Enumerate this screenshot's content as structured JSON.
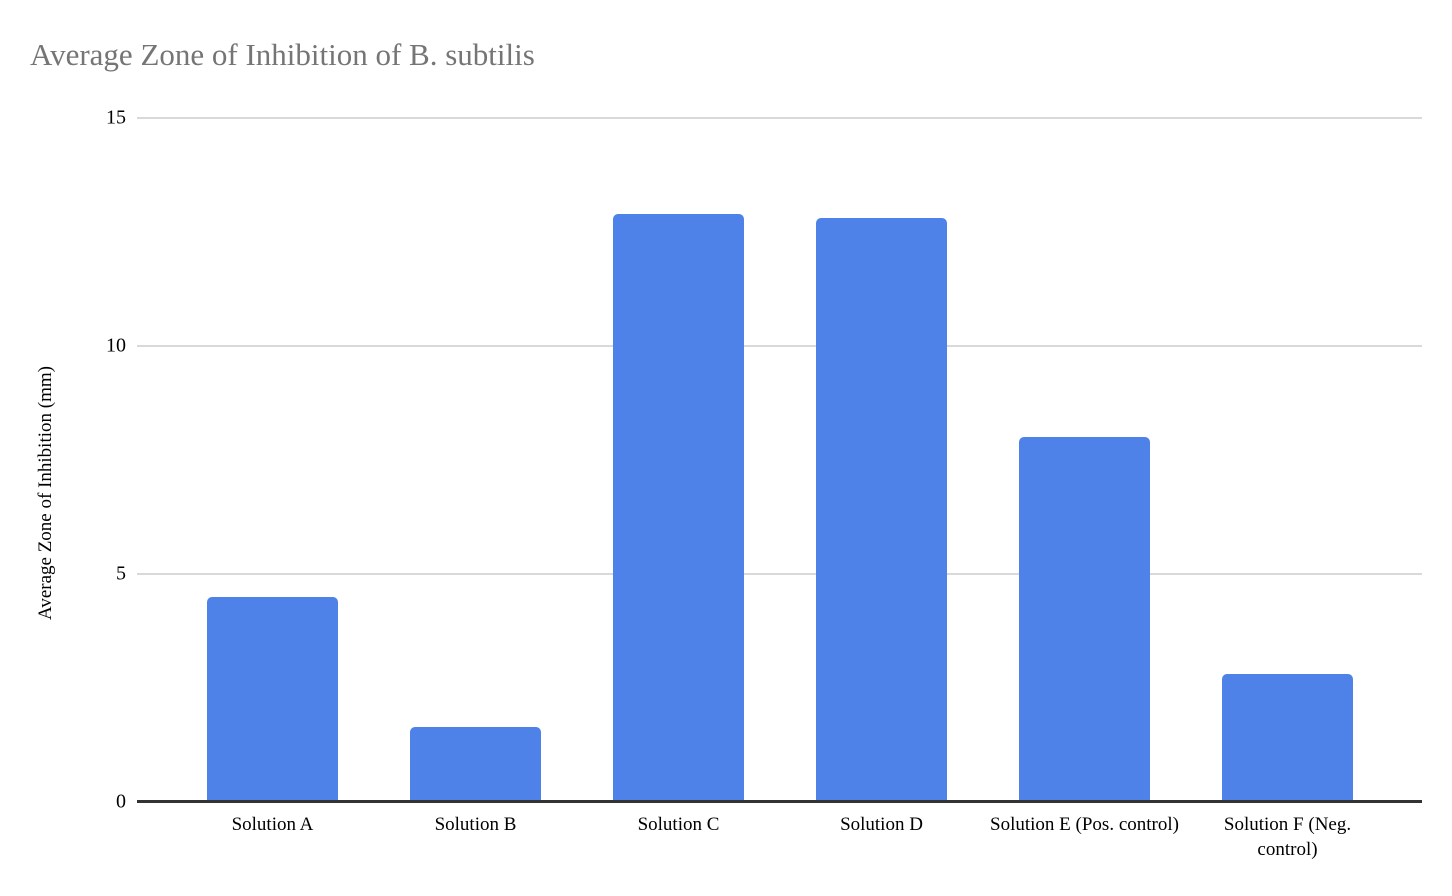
{
  "chart_data": {
    "type": "bar",
    "title": "Average Zone of Inhibition of B. subtilis",
    "xlabel": "",
    "ylabel": "Average Zone of Inhibition (mm)",
    "categories": [
      "Solution A",
      "Solution B",
      "Solution C",
      "Solution D",
      "Solution E (Pos. control)",
      "Solution F (Neg. control)"
    ],
    "values": [
      4.5,
      1.65,
      12.9,
      12.8,
      8,
      2.8
    ],
    "ylim": [
      0,
      15
    ],
    "yticks": [
      0,
      5,
      10,
      15
    ],
    "grid": true,
    "legend": "none",
    "colors": {
      "bar": "#4e82e8",
      "title_text": "#757575",
      "axis_text": "#000000",
      "gridline": "#d9d9d9",
      "baseline": "#333333"
    }
  }
}
